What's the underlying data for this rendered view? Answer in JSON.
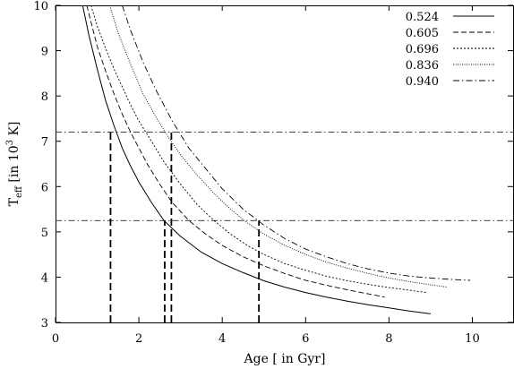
{
  "chart_data": {
    "type": "line",
    "title": "",
    "xlabel": "Age [ in Gyr]",
    "ylabel_parts": {
      "main": "T",
      "sub": "eff",
      "pre": " [in 10",
      "sup": "3",
      "post": " K]"
    },
    "xlim": [
      0,
      11
    ],
    "ylim": [
      3,
      10
    ],
    "xticks": [
      0,
      2,
      4,
      6,
      8,
      10
    ],
    "yticks": [
      3,
      4,
      5,
      6,
      7,
      8,
      9,
      10
    ],
    "grid": false,
    "legend_position": "top-right",
    "series": [
      {
        "name": "0.524",
        "dash": "solid",
        "x": [
          0.65,
          0.8,
          1.0,
          1.2,
          1.4,
          1.6,
          1.8,
          2.0,
          2.3,
          2.6,
          3.0,
          3.5,
          4.0,
          4.5,
          5.0,
          5.5,
          6.0,
          6.5,
          7.0,
          7.5,
          8.0,
          8.5,
          9.0
        ],
        "y": [
          10.0,
          9.35,
          8.6,
          7.9,
          7.35,
          6.85,
          6.45,
          6.1,
          5.65,
          5.25,
          4.9,
          4.55,
          4.3,
          4.1,
          3.92,
          3.78,
          3.66,
          3.56,
          3.47,
          3.39,
          3.32,
          3.25,
          3.19
        ]
      },
      {
        "name": "0.605",
        "dash": "dashed",
        "x": [
          0.75,
          1.0,
          1.2,
          1.4,
          1.6,
          1.8,
          2.0,
          2.2,
          2.5,
          2.8,
          3.2,
          3.6,
          4.0,
          4.5,
          5.0,
          5.5,
          6.0,
          6.5,
          7.0,
          7.5,
          7.9
        ],
        "y": [
          10.0,
          9.1,
          8.55,
          8.05,
          7.6,
          7.2,
          6.85,
          6.5,
          6.05,
          5.65,
          5.25,
          4.95,
          4.7,
          4.45,
          4.25,
          4.08,
          3.93,
          3.82,
          3.72,
          3.63,
          3.56
        ]
      },
      {
        "name": "0.696",
        "dash": "dotted",
        "x": [
          0.85,
          1.0,
          1.2,
          1.4,
          1.6,
          1.8,
          2.0,
          2.3,
          2.6,
          3.0,
          3.4,
          3.8,
          4.2,
          4.6,
          5.0,
          5.5,
          6.0,
          6.5,
          7.0,
          7.5,
          8.0,
          8.5,
          8.9
        ],
        "y": [
          10.0,
          9.55,
          9.05,
          8.6,
          8.2,
          7.8,
          7.45,
          7.0,
          6.55,
          6.05,
          5.6,
          5.25,
          4.95,
          4.7,
          4.5,
          4.3,
          4.15,
          4.02,
          3.92,
          3.84,
          3.77,
          3.71,
          3.66
        ]
      },
      {
        "name": "0.836",
        "dash": "fine-dotted",
        "x": [
          1.3,
          1.5,
          1.8,
          2.1,
          2.4,
          2.7,
          3.0,
          3.4,
          3.8,
          4.2,
          4.6,
          5.0,
          5.5,
          6.0,
          6.5,
          7.0,
          7.5,
          8.0,
          8.5,
          9.0,
          9.4
        ],
        "y": [
          10.0,
          9.4,
          8.7,
          8.05,
          7.55,
          7.1,
          6.7,
          6.25,
          5.85,
          5.5,
          5.2,
          4.95,
          4.7,
          4.5,
          4.33,
          4.2,
          4.08,
          3.98,
          3.9,
          3.83,
          3.78
        ]
      },
      {
        "name": "0.940",
        "dash": "dash-dot",
        "x": [
          1.6,
          1.8,
          2.1,
          2.4,
          2.8,
          3.2,
          3.6,
          4.0,
          4.5,
          5.0,
          5.5,
          6.0,
          6.5,
          7.0,
          7.5,
          8.0,
          8.5,
          9.0,
          9.5,
          9.95
        ],
        "y": [
          10.0,
          9.45,
          8.75,
          8.15,
          7.45,
          6.85,
          6.4,
          5.95,
          5.5,
          5.15,
          4.85,
          4.62,
          4.45,
          4.3,
          4.18,
          4.09,
          4.02,
          3.98,
          3.95,
          3.93
        ]
      }
    ],
    "reference_lines": {
      "horizontal": [
        7.2,
        5.25
      ],
      "vertical": [
        {
          "x": 1.32,
          "y_top": 7.2
        },
        {
          "x": 2.62,
          "y_top": 5.25
        },
        {
          "x": 2.78,
          "y_top": 7.2
        },
        {
          "x": 4.88,
          "y_top": 5.25
        }
      ]
    }
  }
}
